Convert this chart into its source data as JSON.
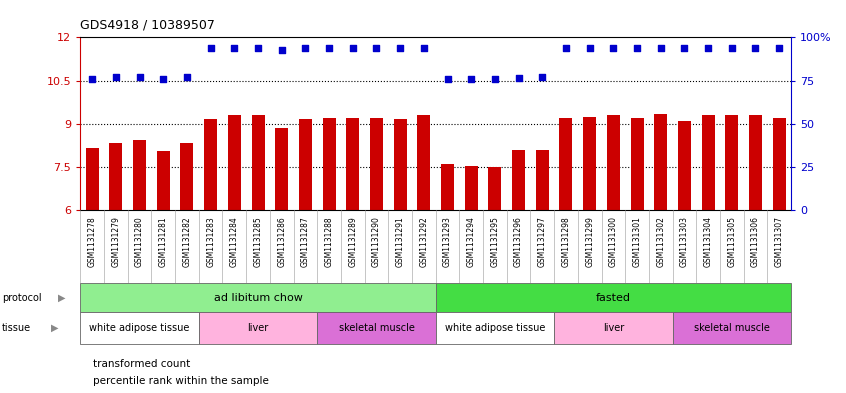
{
  "title": "GDS4918 / 10389507",
  "samples": [
    "GSM1131278",
    "GSM1131279",
    "GSM1131280",
    "GSM1131281",
    "GSM1131282",
    "GSM1131283",
    "GSM1131284",
    "GSM1131285",
    "GSM1131286",
    "GSM1131287",
    "GSM1131288",
    "GSM1131289",
    "GSM1131290",
    "GSM1131291",
    "GSM1131292",
    "GSM1131293",
    "GSM1131294",
    "GSM1131295",
    "GSM1131296",
    "GSM1131297",
    "GSM1131298",
    "GSM1131299",
    "GSM1131300",
    "GSM1131301",
    "GSM1131302",
    "GSM1131303",
    "GSM1131304",
    "GSM1131305",
    "GSM1131306",
    "GSM1131307"
  ],
  "bar_values": [
    8.15,
    8.35,
    8.45,
    8.05,
    8.35,
    9.15,
    9.3,
    9.3,
    8.85,
    9.15,
    9.2,
    9.2,
    9.2,
    9.15,
    9.3,
    7.6,
    7.55,
    7.5,
    8.1,
    8.1,
    9.2,
    9.25,
    9.3,
    9.2,
    9.35,
    9.1,
    9.3,
    9.3,
    9.3,
    9.2
  ],
  "percentile_values": [
    10.57,
    10.62,
    10.63,
    10.56,
    10.62,
    11.63,
    11.63,
    11.63,
    11.57,
    11.63,
    11.63,
    11.63,
    11.63,
    11.63,
    11.63,
    10.56,
    10.55,
    10.56,
    10.6,
    10.62,
    11.63,
    11.63,
    11.63,
    11.63,
    11.63,
    11.63,
    11.63,
    11.63,
    11.63,
    11.63
  ],
  "ylim": [
    6,
    12
  ],
  "yticks": [
    6,
    7.5,
    9,
    10.5,
    12
  ],
  "ytick_labels": [
    "6",
    "7.5",
    "9",
    "10.5",
    "12"
  ],
  "y2ticks": [
    0,
    25,
    50,
    75,
    100
  ],
  "y2tick_labels": [
    "0",
    "25",
    "50",
    "75",
    "100%"
  ],
  "bar_color": "#CC0000",
  "dot_color": "#0000CC",
  "bar_bottom": 6,
  "protocol_groups": [
    {
      "label": "ad libitum chow",
      "start": 0,
      "end": 14,
      "color": "#90EE90"
    },
    {
      "label": "fasted",
      "start": 15,
      "end": 29,
      "color": "#44DD44"
    }
  ],
  "tissue_groups": [
    {
      "label": "white adipose tissue",
      "start": 0,
      "end": 4,
      "color": "#FFFFFF"
    },
    {
      "label": "liver",
      "start": 5,
      "end": 9,
      "color": "#FFB3DE"
    },
    {
      "label": "skeletal muscle",
      "start": 10,
      "end": 14,
      "color": "#DA70D6"
    },
    {
      "label": "white adipose tissue",
      "start": 15,
      "end": 19,
      "color": "#FFFFFF"
    },
    {
      "label": "liver",
      "start": 20,
      "end": 24,
      "color": "#FFB3DE"
    },
    {
      "label": "skeletal muscle",
      "start": 25,
      "end": 29,
      "color": "#DA70D6"
    }
  ],
  "legend_items": [
    {
      "label": "transformed count",
      "color": "#CC0000"
    },
    {
      "label": "percentile rank within the sample",
      "color": "#0000CC"
    }
  ],
  "xtick_bg": "#C8C8C8",
  "dotted_lines": [
    7.5,
    9,
    10.5
  ]
}
